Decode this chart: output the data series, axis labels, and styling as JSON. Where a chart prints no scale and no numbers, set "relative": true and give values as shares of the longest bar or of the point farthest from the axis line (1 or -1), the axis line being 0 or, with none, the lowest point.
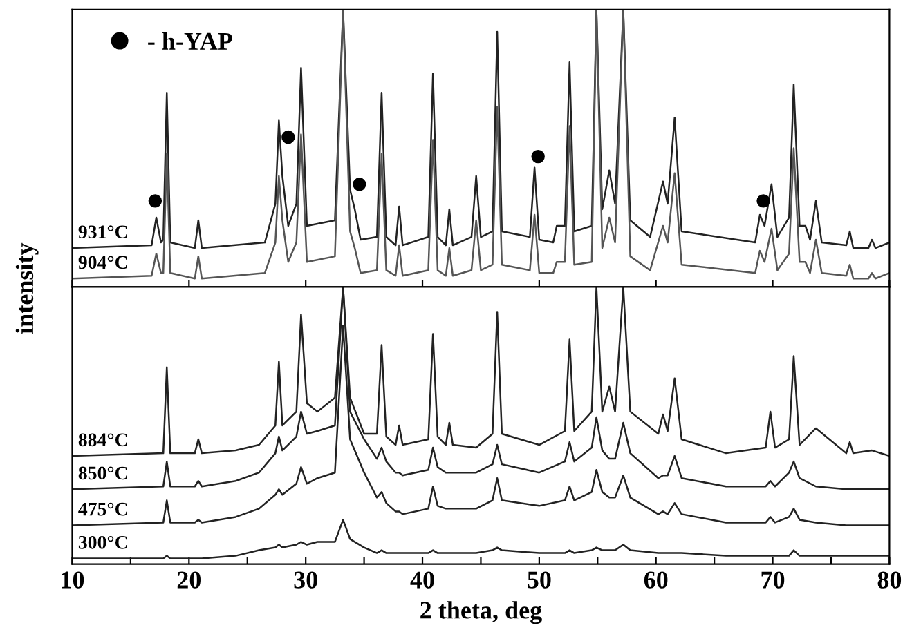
{
  "chart_data": [
    {
      "type": "line",
      "relative": true,
      "ylabel": "intensity",
      "xlim": [
        10,
        80
      ],
      "xticks": [
        {
          "value": 10,
          "label": null
        },
        {
          "value": 20,
          "label": null
        },
        {
          "value": 30,
          "label": null
        },
        {
          "value": 40,
          "label": null
        },
        {
          "value": 50,
          "label": null
        },
        {
          "value": 60,
          "label": null
        },
        {
          "value": 70,
          "label": null
        },
        {
          "value": 80,
          "label": null
        }
      ],
      "tick_labels": false,
      "legend": "top left",
      "grid": false,
      "x": [
        10,
        16.8,
        17.2,
        17.6,
        17.8,
        18.1,
        18.4,
        20.5,
        20.8,
        21.1,
        26.5,
        27.4,
        27.7,
        28.0,
        28.5,
        29.2,
        29.6,
        30.1,
        32.5,
        33.2,
        33.8,
        34.2,
        34.7,
        36.1,
        36.5,
        36.9,
        37.7,
        38.0,
        38.3,
        40.5,
        40.9,
        41.3,
        42.0,
        42.3,
        42.6,
        44.2,
        44.6,
        45.0,
        46.0,
        46.4,
        46.8,
        49.2,
        49.6,
        50.0,
        51.2,
        51.5,
        52.2,
        52.6,
        53.0,
        54.5,
        54.9,
        55.4,
        56.0,
        56.5,
        57.2,
        57.8,
        59.5,
        60.6,
        61.0,
        61.6,
        62.2,
        68.5,
        68.9,
        69.3,
        69.9,
        70.4,
        71.4,
        71.8,
        72.3,
        72.8,
        73.2,
        73.7,
        74.2,
        76.3,
        76.6,
        76.9,
        78.2,
        78.5,
        78.8,
        80
      ],
      "series": [
        {
          "name": "931°C",
          "color": "#222222",
          "values": [
            0.14,
            0.15,
            0.25,
            0.16,
            0.17,
            0.7,
            0.16,
            0.14,
            0.24,
            0.14,
            0.16,
            0.3,
            0.6,
            0.4,
            0.22,
            0.3,
            0.79,
            0.22,
            0.24,
            1.0,
            0.35,
            0.28,
            0.17,
            0.18,
            0.7,
            0.18,
            0.15,
            0.29,
            0.15,
            0.18,
            0.77,
            0.18,
            0.15,
            0.28,
            0.15,
            0.18,
            0.4,
            0.18,
            0.2,
            0.92,
            0.2,
            0.18,
            0.43,
            0.17,
            0.16,
            0.22,
            0.22,
            0.81,
            0.2,
            0.22,
            1.0,
            0.28,
            0.42,
            0.3,
            1.0,
            0.24,
            0.18,
            0.38,
            0.3,
            0.61,
            0.2,
            0.16,
            0.26,
            0.22,
            0.37,
            0.18,
            0.25,
            0.73,
            0.22,
            0.22,
            0.17,
            0.31,
            0.16,
            0.15,
            0.2,
            0.14,
            0.14,
            0.17,
            0.14,
            0.16
          ]
        },
        {
          "name": "904°C",
          "color": "#555555",
          "values": [
            0.03,
            0.04,
            0.12,
            0.05,
            0.05,
            0.48,
            0.05,
            0.03,
            0.11,
            0.03,
            0.05,
            0.16,
            0.4,
            0.24,
            0.09,
            0.16,
            0.55,
            0.09,
            0.11,
            1.0,
            0.2,
            0.14,
            0.05,
            0.06,
            0.48,
            0.06,
            0.04,
            0.15,
            0.04,
            0.06,
            0.53,
            0.06,
            0.04,
            0.14,
            0.04,
            0.06,
            0.24,
            0.06,
            0.08,
            0.65,
            0.08,
            0.06,
            0.26,
            0.05,
            0.05,
            0.09,
            0.09,
            0.58,
            0.08,
            0.09,
            1.0,
            0.14,
            0.25,
            0.16,
            1.0,
            0.11,
            0.06,
            0.22,
            0.16,
            0.41,
            0.08,
            0.05,
            0.13,
            0.09,
            0.21,
            0.06,
            0.12,
            0.5,
            0.09,
            0.09,
            0.05,
            0.17,
            0.05,
            0.04,
            0.08,
            0.03,
            0.03,
            0.05,
            0.03,
            0.05
          ]
        },
        {
          "name": "- h-YAP",
          "type": "scatter",
          "marker": "circle",
          "color": "#000000",
          "x": [
            17.1,
            28.5,
            34.6,
            49.9,
            69.2
          ],
          "values": [
            0.31,
            0.54,
            0.37,
            0.47,
            0.31
          ]
        }
      ]
    },
    {
      "type": "line",
      "relative": true,
      "xlabel": "2 theta, deg",
      "xlim": [
        10,
        80
      ],
      "xticks": [
        10,
        {
          "value": 15,
          "label": null
        },
        20,
        {
          "value": 25,
          "label": null
        },
        30,
        {
          "value": 35,
          "label": null
        },
        40,
        {
          "value": 45,
          "label": null
        },
        50,
        {
          "value": 55,
          "label": null
        },
        60,
        {
          "value": 65,
          "label": null
        },
        70,
        {
          "value": 75,
          "label": null
        },
        80
      ],
      "tick_labels": "x",
      "grid": false,
      "x": [
        10,
        17.8,
        18.1,
        18.4,
        20.5,
        20.8,
        21.1,
        24,
        26,
        27.4,
        27.7,
        28.0,
        29.2,
        29.6,
        30.1,
        31,
        32.5,
        33.2,
        33.8,
        35,
        36.1,
        36.5,
        36.9,
        37.7,
        38.0,
        38.3,
        40.5,
        40.9,
        41.3,
        42.0,
        42.3,
        42.6,
        44.6,
        46.0,
        46.4,
        46.8,
        50,
        52.2,
        52.6,
        53.0,
        54.5,
        54.9,
        55.4,
        56.0,
        56.5,
        57.2,
        57.8,
        60.2,
        60.6,
        61.0,
        61.6,
        62.2,
        66,
        69.4,
        69.8,
        70.2,
        71.4,
        71.8,
        72.3,
        73.7,
        76.3,
        76.6,
        76.9,
        78.5,
        80
      ],
      "series": [
        {
          "name": "884°C",
          "color": "#222222",
          "values": [
            0.39,
            0.4,
            0.71,
            0.4,
            0.4,
            0.45,
            0.4,
            0.41,
            0.43,
            0.5,
            0.73,
            0.5,
            0.55,
            0.9,
            0.58,
            0.55,
            0.6,
            1.0,
            0.6,
            0.47,
            0.47,
            0.79,
            0.46,
            0.43,
            0.5,
            0.43,
            0.45,
            0.83,
            0.46,
            0.43,
            0.51,
            0.43,
            0.42,
            0.47,
            0.91,
            0.47,
            0.43,
            0.48,
            0.81,
            0.48,
            0.55,
            1.0,
            0.55,
            0.64,
            0.55,
            1.0,
            0.55,
            0.47,
            0.54,
            0.48,
            0.67,
            0.45,
            0.4,
            0.42,
            0.55,
            0.42,
            0.45,
            0.75,
            0.43,
            0.49,
            0.4,
            0.44,
            0.4,
            0.41,
            0.39
          ]
        },
        {
          "name": "850°C",
          "color": "#222222",
          "values": [
            0.27,
            0.28,
            0.37,
            0.28,
            0.28,
            0.3,
            0.28,
            0.3,
            0.33,
            0.4,
            0.46,
            0.41,
            0.46,
            0.55,
            0.47,
            0.48,
            0.5,
            1.0,
            0.55,
            0.45,
            0.38,
            0.42,
            0.37,
            0.33,
            0.33,
            0.32,
            0.34,
            0.42,
            0.35,
            0.33,
            0.33,
            0.33,
            0.33,
            0.36,
            0.43,
            0.36,
            0.33,
            0.37,
            0.44,
            0.37,
            0.42,
            0.53,
            0.41,
            0.38,
            0.38,
            0.51,
            0.4,
            0.31,
            0.32,
            0.32,
            0.39,
            0.31,
            0.28,
            0.28,
            0.3,
            0.28,
            0.33,
            0.37,
            0.31,
            0.28,
            0.27,
            0.27,
            0.27,
            0.27,
            0.27
          ]
        },
        {
          "name": "475°C",
          "color": "#222222",
          "values": [
            0.14,
            0.15,
            0.23,
            0.15,
            0.15,
            0.16,
            0.15,
            0.17,
            0.2,
            0.25,
            0.27,
            0.25,
            0.29,
            0.35,
            0.29,
            0.31,
            0.33,
            0.86,
            0.45,
            0.33,
            0.24,
            0.26,
            0.22,
            0.19,
            0.19,
            0.18,
            0.2,
            0.28,
            0.21,
            0.2,
            0.2,
            0.2,
            0.2,
            0.23,
            0.31,
            0.23,
            0.21,
            0.23,
            0.28,
            0.23,
            0.26,
            0.34,
            0.26,
            0.24,
            0.24,
            0.32,
            0.24,
            0.18,
            0.19,
            0.18,
            0.22,
            0.18,
            0.15,
            0.15,
            0.17,
            0.15,
            0.17,
            0.2,
            0.16,
            0.15,
            0.14,
            0.14,
            0.14,
            0.14,
            0.14
          ]
        },
        {
          "name": "300°C",
          "color": "#222222",
          "values": [
            0.02,
            0.02,
            0.03,
            0.02,
            0.02,
            0.02,
            0.02,
            0.03,
            0.05,
            0.06,
            0.07,
            0.06,
            0.07,
            0.08,
            0.07,
            0.08,
            0.08,
            0.16,
            0.09,
            0.06,
            0.04,
            0.05,
            0.04,
            0.04,
            0.04,
            0.04,
            0.04,
            0.05,
            0.04,
            0.04,
            0.04,
            0.04,
            0.04,
            0.05,
            0.06,
            0.05,
            0.04,
            0.04,
            0.05,
            0.04,
            0.05,
            0.06,
            0.05,
            0.05,
            0.05,
            0.07,
            0.05,
            0.04,
            0.04,
            0.04,
            0.04,
            0.04,
            0.03,
            0.03,
            0.03,
            0.03,
            0.03,
            0.05,
            0.03,
            0.03,
            0.03,
            0.03,
            0.03,
            0.03,
            0.03
          ]
        }
      ]
    }
  ]
}
